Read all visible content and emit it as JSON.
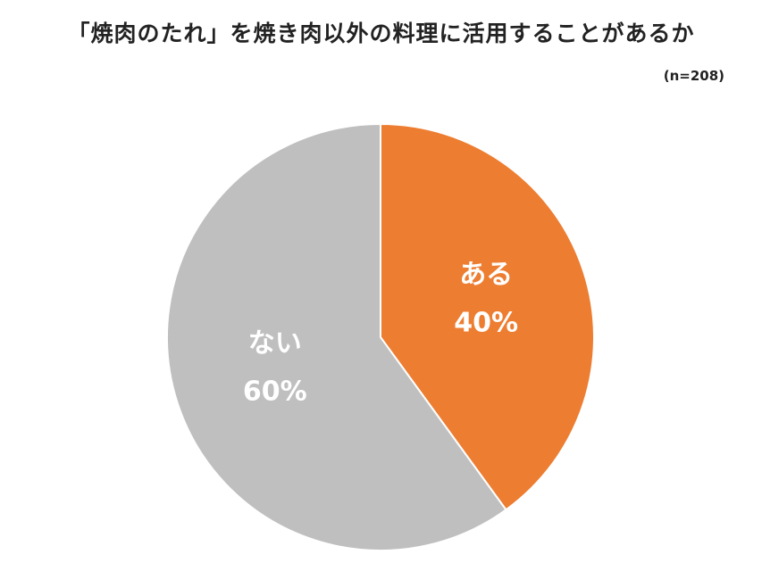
{
  "chart_data": {
    "type": "pie",
    "title": "「焼肉のたれ」を焼き肉以外の料理に活用することがあるか",
    "note": "(n=208)",
    "slices": [
      {
        "label": "ある",
        "value": 40,
        "value_label": "40%",
        "color": "#ED7D31"
      },
      {
        "label": "ない",
        "value": 60,
        "value_label": "60%",
        "color": "#BFBFBF"
      }
    ],
    "start": "12 o'clock",
    "direction": "clockwise"
  }
}
